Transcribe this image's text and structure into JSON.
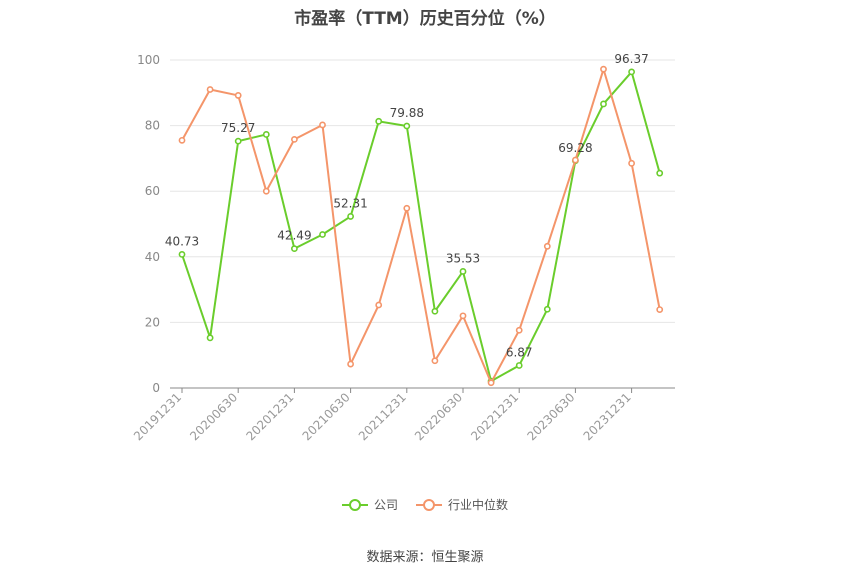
{
  "chart_data": {
    "type": "line",
    "title": "市盈率（TTM）历史百分位（%）",
    "x_tick_labels": [
      "20191231",
      "20200630",
      "20201231",
      "20210630",
      "20211231",
      "20220630",
      "20221231",
      "20230630",
      "20231231"
    ],
    "ylim": [
      0,
      100
    ],
    "y_ticks": [
      0,
      20,
      40,
      60,
      80,
      100
    ],
    "grid": true,
    "legend_position": "bottom-center",
    "series": [
      {
        "name": "公司",
        "color": "#6ACD2C",
        "values": [
          40.73,
          15.3,
          75.27,
          77.3,
          42.49,
          46.8,
          52.31,
          81.3,
          79.88,
          23.4,
          35.53,
          2.1,
          6.87,
          24.0,
          69.28,
          86.6,
          96.37,
          65.5
        ],
        "labels": {
          "0": "40.73",
          "2": "75.27",
          "4": "42.49",
          "6": "52.31",
          "8": "79.88",
          "10": "35.53",
          "12": "6.87",
          "14": "69.28",
          "16": "96.37"
        }
      },
      {
        "name": "行业中位数",
        "color": "#F4956A",
        "values": [
          75.5,
          91.0,
          89.2,
          60.0,
          75.8,
          80.2,
          7.3,
          25.3,
          54.8,
          8.3,
          22.0,
          1.6,
          17.6,
          43.2,
          69.5,
          97.2,
          68.5,
          23.9
        ]
      }
    ]
  },
  "source_text": "数据来源：恒生聚源"
}
